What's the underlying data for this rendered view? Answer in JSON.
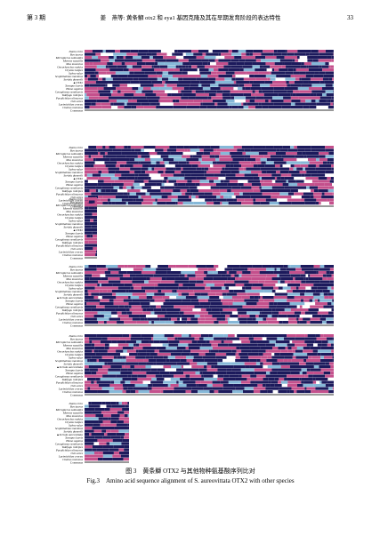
{
  "header": {
    "issue": "第 3 期",
    "title": "姜　燕等: 黄条鰤 otx2 和 eya1 基因克隆及其在早期发育阶段的表达特性",
    "page": "33"
  },
  "figure": {
    "species": [
      "Danio rerio",
      "Bos taurus",
      "Micropterus salmoides",
      "Morone saxatilis",
      "Mus musculus",
      "Oncorhynchus mykiss",
      "Oryzias latipes",
      "Salmo salar",
      "Scophthalmus maximus",
      "Seriola dumerili",
      "Xenopus laevis",
      "Homo sapiens",
      "Cynoglossus semilaevis",
      "Takifugu rubripes",
      "Paralichthys olivaceus",
      "Ovis aries",
      "Larimichthys crocea",
      "Chelmo rostratus"
    ],
    "query_labels": [
      "▲OTX2",
      "▲Seriola aureovittata"
    ],
    "consensus": "Consensus",
    "caption_cn": "图 3　黄条鰤 OTX2 与其他物种氨基酸序列比对",
    "caption_en": "Fig.3　Amino acid sequence alignment of S. aureovittata OTX2 with other species"
  }
}
